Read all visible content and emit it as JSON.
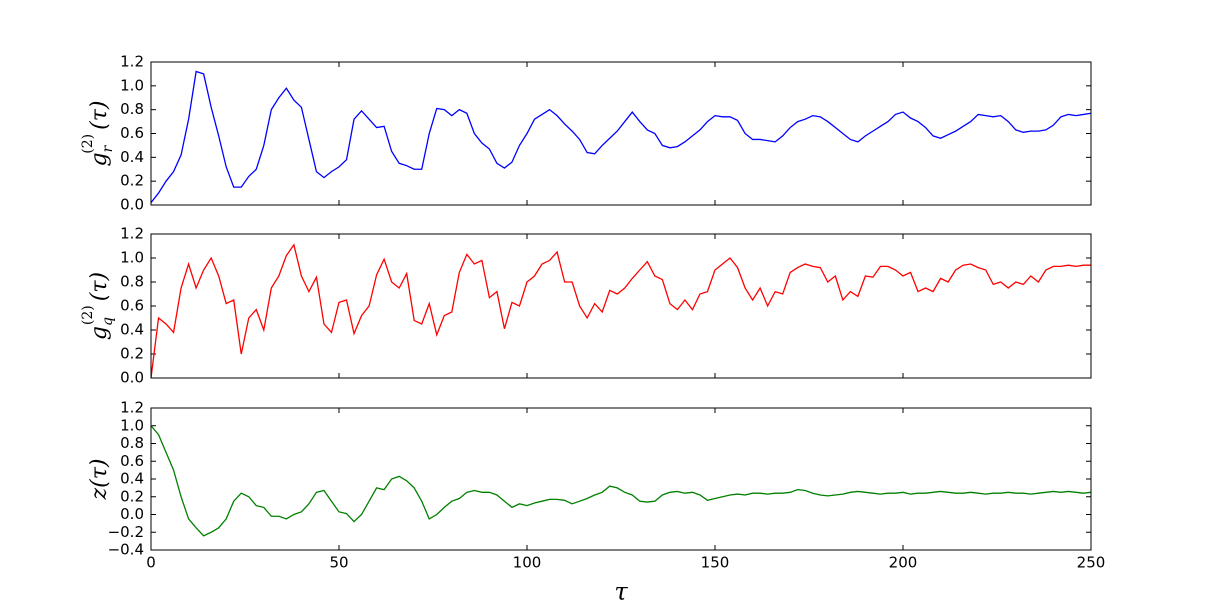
{
  "chart_data": [
    {
      "type": "line",
      "ylabel": {
        "base": "g",
        "sup": "(2)",
        "sub": "r",
        "arg": "(τ)"
      },
      "x": [
        0,
        2,
        4,
        6,
        8,
        10,
        12,
        14,
        16,
        18,
        20,
        22,
        24,
        26,
        28,
        30,
        32,
        34,
        36,
        38,
        40,
        42,
        44,
        46,
        48,
        50,
        52,
        54,
        56,
        58,
        60,
        62,
        64,
        66,
        68,
        70,
        72,
        74,
        76,
        78,
        80,
        82,
        84,
        86,
        88,
        90,
        92,
        94,
        96,
        98,
        100,
        102,
        104,
        106,
        108,
        110,
        112,
        114,
        116,
        118,
        120,
        122,
        124,
        126,
        128,
        130,
        132,
        134,
        136,
        138,
        140,
        142,
        144,
        146,
        148,
        150,
        152,
        154,
        156,
        158,
        160,
        162,
        164,
        166,
        168,
        170,
        172,
        174,
        176,
        178,
        180,
        182,
        184,
        186,
        188,
        190,
        192,
        194,
        196,
        198,
        200,
        202,
        204,
        206,
        208,
        210,
        212,
        214,
        216,
        218,
        220,
        222,
        224,
        226,
        228,
        230,
        232,
        234,
        236,
        238,
        240,
        242,
        244,
        246,
        248,
        250
      ],
      "series": [
        {
          "color": "#0000ff",
          "values": [
            0.02,
            0.1,
            0.2,
            0.28,
            0.42,
            0.72,
            1.12,
            1.1,
            0.82,
            0.58,
            0.32,
            0.15,
            0.15,
            0.24,
            0.3,
            0.5,
            0.8,
            0.9,
            0.98,
            0.88,
            0.82,
            0.55,
            0.28,
            0.23,
            0.28,
            0.32,
            0.38,
            0.72,
            0.79,
            0.72,
            0.65,
            0.66,
            0.45,
            0.35,
            0.33,
            0.3,
            0.3,
            0.6,
            0.81,
            0.8,
            0.75,
            0.8,
            0.77,
            0.6,
            0.52,
            0.47,
            0.35,
            0.31,
            0.36,
            0.5,
            0.6,
            0.72,
            0.76,
            0.8,
            0.75,
            0.68,
            0.62,
            0.55,
            0.44,
            0.43,
            0.5,
            0.56,
            0.62,
            0.7,
            0.78,
            0.7,
            0.63,
            0.6,
            0.5,
            0.48,
            0.49,
            0.53,
            0.58,
            0.63,
            0.7,
            0.75,
            0.74,
            0.74,
            0.71,
            0.6,
            0.55,
            0.55,
            0.54,
            0.53,
            0.58,
            0.65,
            0.7,
            0.72,
            0.75,
            0.74,
            0.7,
            0.65,
            0.6,
            0.55,
            0.53,
            0.58,
            0.62,
            0.66,
            0.7,
            0.76,
            0.78,
            0.73,
            0.7,
            0.65,
            0.58,
            0.56,
            0.59,
            0.62,
            0.66,
            0.7,
            0.76,
            0.75,
            0.74,
            0.75,
            0.7,
            0.63,
            0.61,
            0.62,
            0.62,
            0.63,
            0.67,
            0.74,
            0.76,
            0.75,
            0.76,
            0.77
          ]
        }
      ],
      "xlim": [
        0,
        250
      ],
      "xticks": [
        0,
        50,
        100,
        150,
        200,
        250
      ],
      "ylim": [
        0,
        1.2
      ],
      "yticks": [
        {
          "value": 0,
          "label": "0.0"
        },
        0.2,
        0.4,
        0.6,
        0.8,
        {
          "value": 1,
          "label": "1.0"
        },
        1.2
      ]
    },
    {
      "type": "line",
      "ylabel": {
        "base": "g",
        "sup": "(2)",
        "sub": "q",
        "arg": "(τ)"
      },
      "x": [
        0,
        2,
        4,
        6,
        8,
        10,
        12,
        14,
        16,
        18,
        20,
        22,
        24,
        26,
        28,
        30,
        32,
        34,
        36,
        38,
        40,
        42,
        44,
        46,
        48,
        50,
        52,
        54,
        56,
        58,
        60,
        62,
        64,
        66,
        68,
        70,
        72,
        74,
        76,
        78,
        80,
        82,
        84,
        86,
        88,
        90,
        92,
        94,
        96,
        98,
        100,
        102,
        104,
        106,
        108,
        110,
        112,
        114,
        116,
        118,
        120,
        122,
        124,
        126,
        128,
        130,
        132,
        134,
        136,
        138,
        140,
        142,
        144,
        146,
        148,
        150,
        152,
        154,
        156,
        158,
        160,
        162,
        164,
        166,
        168,
        170,
        172,
        174,
        176,
        178,
        180,
        182,
        184,
        186,
        188,
        190,
        192,
        194,
        196,
        198,
        200,
        202,
        204,
        206,
        208,
        210,
        212,
        214,
        216,
        218,
        220,
        222,
        224,
        226,
        228,
        230,
        232,
        234,
        236,
        238,
        240,
        242,
        244,
        246,
        248,
        250
      ],
      "series": [
        {
          "color": "#ff0000",
          "values": [
            0.0,
            0.5,
            0.45,
            0.38,
            0.75,
            0.95,
            0.75,
            0.9,
            1.0,
            0.85,
            0.62,
            0.65,
            0.2,
            0.5,
            0.57,
            0.4,
            0.75,
            0.85,
            1.02,
            1.11,
            0.85,
            0.72,
            0.84,
            0.45,
            0.38,
            0.63,
            0.65,
            0.37,
            0.52,
            0.6,
            0.86,
            0.99,
            0.8,
            0.75,
            0.87,
            0.48,
            0.45,
            0.62,
            0.36,
            0.52,
            0.55,
            0.88,
            1.03,
            0.95,
            0.98,
            0.67,
            0.72,
            0.41,
            0.63,
            0.6,
            0.8,
            0.85,
            0.95,
            0.98,
            1.05,
            0.8,
            0.8,
            0.6,
            0.5,
            0.62,
            0.55,
            0.73,
            0.7,
            0.75,
            0.83,
            0.9,
            0.97,
            0.85,
            0.82,
            0.62,
            0.57,
            0.65,
            0.57,
            0.7,
            0.72,
            0.9,
            0.95,
            1.0,
            0.92,
            0.75,
            0.65,
            0.75,
            0.6,
            0.72,
            0.7,
            0.88,
            0.92,
            0.95,
            0.93,
            0.92,
            0.8,
            0.85,
            0.65,
            0.72,
            0.68,
            0.85,
            0.84,
            0.93,
            0.93,
            0.9,
            0.85,
            0.88,
            0.72,
            0.75,
            0.72,
            0.83,
            0.8,
            0.9,
            0.94,
            0.95,
            0.92,
            0.9,
            0.78,
            0.8,
            0.75,
            0.8,
            0.78,
            0.85,
            0.8,
            0.9,
            0.93,
            0.93,
            0.94,
            0.93,
            0.94,
            0.94
          ]
        }
      ],
      "xlim": [
        0,
        250
      ],
      "xticks": [
        0,
        50,
        100,
        150,
        200,
        250
      ],
      "ylim": [
        0,
        1.2
      ],
      "yticks": [
        {
          "value": 0,
          "label": "0.0"
        },
        0.2,
        0.4,
        0.6,
        0.8,
        {
          "value": 1,
          "label": "1.0"
        },
        1.2
      ]
    },
    {
      "type": "line",
      "ylabel": "z(τ)",
      "xlabel": "τ",
      "x": [
        0,
        2,
        4,
        6,
        8,
        10,
        12,
        14,
        16,
        18,
        20,
        22,
        24,
        26,
        28,
        30,
        32,
        34,
        36,
        38,
        40,
        42,
        44,
        46,
        48,
        50,
        52,
        54,
        56,
        58,
        60,
        62,
        64,
        66,
        68,
        70,
        72,
        74,
        76,
        78,
        80,
        82,
        84,
        86,
        88,
        90,
        92,
        94,
        96,
        98,
        100,
        102,
        104,
        106,
        108,
        110,
        112,
        114,
        116,
        118,
        120,
        122,
        124,
        126,
        128,
        130,
        132,
        134,
        136,
        138,
        140,
        142,
        144,
        146,
        148,
        150,
        152,
        154,
        156,
        158,
        160,
        162,
        164,
        166,
        168,
        170,
        172,
        174,
        176,
        178,
        180,
        182,
        184,
        186,
        188,
        190,
        192,
        194,
        196,
        198,
        200,
        202,
        204,
        206,
        208,
        210,
        212,
        214,
        216,
        218,
        220,
        222,
        224,
        226,
        228,
        230,
        232,
        234,
        236,
        238,
        240,
        242,
        244,
        246,
        248,
        250
      ],
      "series": [
        {
          "color": "#008000",
          "values": [
            1.0,
            0.9,
            0.7,
            0.5,
            0.2,
            -0.05,
            -0.15,
            -0.24,
            -0.2,
            -0.15,
            -0.05,
            0.15,
            0.24,
            0.2,
            0.1,
            0.08,
            -0.02,
            -0.02,
            -0.05,
            0.0,
            0.03,
            0.12,
            0.25,
            0.27,
            0.15,
            0.03,
            0.01,
            -0.08,
            0.0,
            0.15,
            0.3,
            0.28,
            0.4,
            0.43,
            0.38,
            0.3,
            0.15,
            -0.05,
            0.0,
            0.08,
            0.15,
            0.18,
            0.25,
            0.27,
            0.25,
            0.25,
            0.22,
            0.15,
            0.08,
            0.12,
            0.1,
            0.13,
            0.15,
            0.17,
            0.17,
            0.16,
            0.12,
            0.15,
            0.18,
            0.22,
            0.25,
            0.32,
            0.3,
            0.25,
            0.22,
            0.15,
            0.14,
            0.15,
            0.22,
            0.25,
            0.26,
            0.24,
            0.25,
            0.22,
            0.16,
            0.18,
            0.2,
            0.22,
            0.23,
            0.22,
            0.24,
            0.24,
            0.23,
            0.24,
            0.24,
            0.25,
            0.28,
            0.27,
            0.24,
            0.22,
            0.21,
            0.22,
            0.23,
            0.25,
            0.26,
            0.25,
            0.24,
            0.23,
            0.24,
            0.24,
            0.25,
            0.23,
            0.24,
            0.24,
            0.25,
            0.26,
            0.25,
            0.24,
            0.24,
            0.25,
            0.24,
            0.23,
            0.24,
            0.24,
            0.25,
            0.24,
            0.24,
            0.23,
            0.24,
            0.25,
            0.26,
            0.25,
            0.26,
            0.25,
            0.24,
            0.25
          ]
        }
      ],
      "xlim": [
        0,
        250
      ],
      "xticks": [
        0,
        50,
        100,
        150,
        200,
        250
      ],
      "ylim": [
        -0.4,
        1.2
      ],
      "yticks": [
        {
          "value": -0.4,
          "label": "−0.4"
        },
        {
          "value": -0.2,
          "label": "−0.2"
        },
        {
          "value": 0,
          "label": "0.0"
        },
        0.2,
        0.4,
        0.6,
        0.8,
        {
          "value": 1,
          "label": "1.0"
        },
        1.2
      ]
    }
  ]
}
